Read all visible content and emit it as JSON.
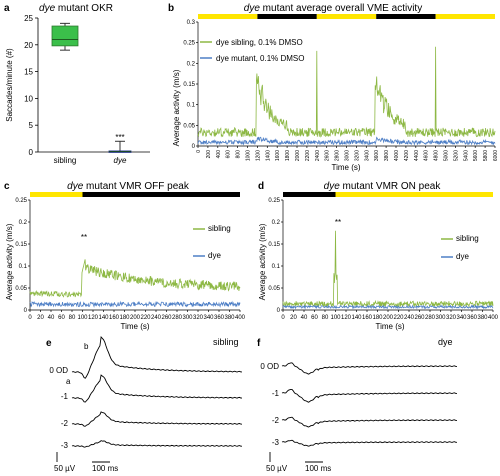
{
  "colors": {
    "green": "#8db844",
    "blue": "#4e7fc6",
    "box_fill": "#3bbf4a",
    "box_edge": "#2d7a2d",
    "yellow": "#ffe600",
    "black": "#000000"
  },
  "chart_data": [
    {
      "panel": "a",
      "type": "box",
      "title": "dye mutant OKR",
      "title_italic": "dye",
      "title_rest": " mutant OKR",
      "ylabel": "Saccades/minute (#)",
      "categories": [
        "sibling",
        "dye"
      ],
      "ylim": [
        0,
        25
      ],
      "yticks": [
        "0",
        "5",
        "10",
        "15",
        "20",
        "25"
      ],
      "boxes": [
        {
          "name": "sibling",
          "min": 19,
          "q1": 19.8,
          "median": 21,
          "q3": 23.5,
          "max": 24
        },
        {
          "name": "dye",
          "min": 0,
          "q1": 0,
          "median": 0.1,
          "q3": 0.2,
          "max": 2
        }
      ],
      "annotation": "***"
    },
    {
      "panel": "b",
      "type": "line",
      "title": "dye mutant average overall VME activity",
      "title_italic": "dye",
      "title_rest": " mutant average overall VME activity",
      "xlabel": "Time (s)",
      "ylabel": "Average activity (m/s)",
      "xlim": [
        0,
        6000
      ],
      "ylim": [
        0,
        0.3
      ],
      "yticks": [
        "0",
        "0.05",
        "0.1",
        "0.15",
        "0.2",
        "0.25",
        "0.3"
      ],
      "xticks": [
        "0",
        "200",
        "400",
        "600",
        "800",
        "1000",
        "1200",
        "1400",
        "1600",
        "1800",
        "2000",
        "2200",
        "2400",
        "2600",
        "2800",
        "3000",
        "3200",
        "3400",
        "3600",
        "3800",
        "4000",
        "4200",
        "4400",
        "4600",
        "4800",
        "5000",
        "5200",
        "5400",
        "5600",
        "5800",
        "6000"
      ],
      "light_bar": [
        [
          0,
          1200,
          "yellow"
        ],
        [
          1200,
          2400,
          "black"
        ],
        [
          2400,
          3600,
          "yellow"
        ],
        [
          3600,
          4800,
          "black"
        ],
        [
          4800,
          6000,
          "yellow"
        ]
      ],
      "series": [
        {
          "name": "dye sibling, 0.1% DMSO",
          "color": "green"
        },
        {
          "name": "dye mutant, 0.1% DMSO",
          "color": "blue"
        }
      ],
      "spikes": [
        [
          1200,
          0.15
        ],
        [
          2400,
          0.23
        ],
        [
          3600,
          0.15
        ],
        [
          4800,
          0.24
        ]
      ]
    },
    {
      "panel": "c",
      "type": "line",
      "title": "dye mutant VMR OFF peak",
      "title_italic": "dye",
      "title_rest": " mutant VMR OFF peak",
      "xlabel": "Time (s)",
      "ylabel": "Average activity (m/s)",
      "xlim": [
        0,
        400
      ],
      "ylim": [
        0,
        0.25
      ],
      "yticks": [
        "0",
        "0.05",
        "0.1",
        "0.15",
        "0.2",
        "0.25"
      ],
      "xticks": [
        "0",
        "20",
        "40",
        "60",
        "80",
        "100",
        "120",
        "140",
        "160",
        "180",
        "200",
        "220",
        "240",
        "260",
        "280",
        "300",
        "320",
        "340",
        "360",
        "380",
        "400"
      ],
      "light_bar": [
        [
          0,
          100,
          "yellow"
        ],
        [
          100,
          400,
          "black"
        ]
      ],
      "series": [
        {
          "name": "sibling",
          "color": "green"
        },
        {
          "name": "dye",
          "color": "blue"
        }
      ],
      "peak": [
        100,
        0.12
      ],
      "annotation": "**"
    },
    {
      "panel": "d",
      "type": "line",
      "title": "dye mutant VMR ON peak",
      "title_italic": "dye",
      "title_rest": " mutant VMR ON peak",
      "xlabel": "Time (s)",
      "ylabel": "Average activity (m/s)",
      "xlim": [
        0,
        400
      ],
      "ylim": [
        0,
        0.25
      ],
      "yticks": [
        "0",
        "0.05",
        "0.1",
        "0.15",
        "0.2",
        "0.25"
      ],
      "xticks": [
        "0",
        "20",
        "40",
        "60",
        "80",
        "100",
        "120",
        "140",
        "160",
        "180",
        "200",
        "220",
        "240",
        "260",
        "280",
        "300",
        "320",
        "340",
        "360",
        "380",
        "400"
      ],
      "light_bar": [
        [
          0,
          100,
          "black"
        ],
        [
          100,
          400,
          "yellow"
        ]
      ],
      "series": [
        {
          "name": "sibling",
          "color": "green"
        },
        {
          "name": "dye",
          "color": "blue"
        }
      ],
      "peak": [
        100,
        0.18
      ],
      "annotation": "**"
    },
    {
      "panel": "e",
      "type": "trace",
      "label": "sibling",
      "rows": [
        "0 OD",
        "-1",
        "-2",
        "-3"
      ],
      "wave_letters": [
        "a",
        "b"
      ],
      "scale_v": "50 µV",
      "scale_t": "100 ms"
    },
    {
      "panel": "f",
      "type": "trace",
      "label": "dye",
      "rows": [
        "0 OD",
        "-1",
        "-2",
        "-3"
      ],
      "scale_v": "50 µV",
      "scale_t": "100 ms"
    }
  ]
}
